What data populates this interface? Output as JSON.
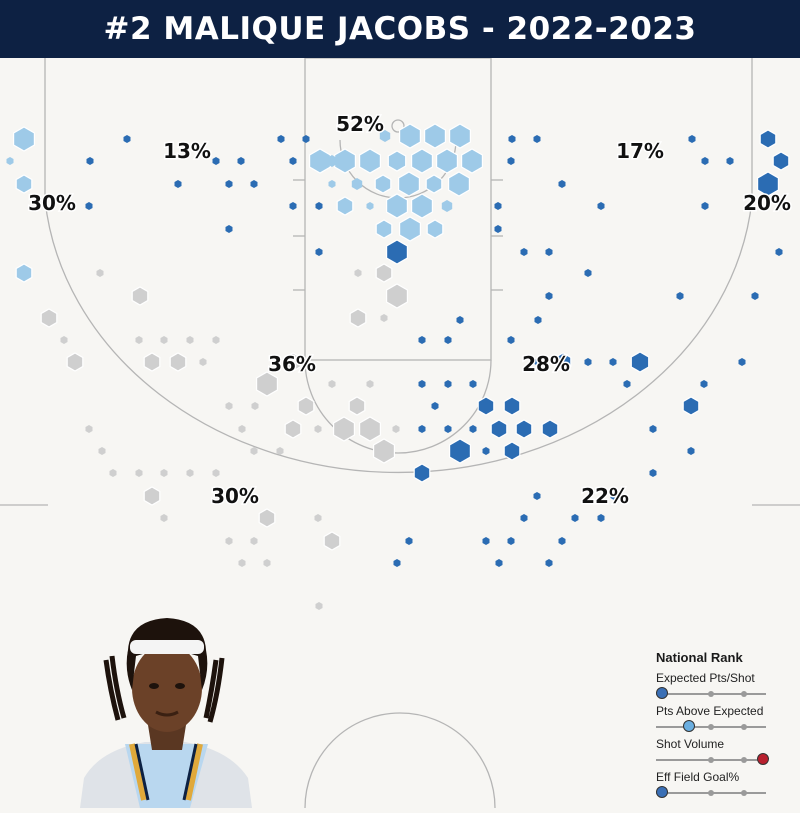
{
  "header": {
    "title": "#2 MALIQUE JACOBS - 2022-2023"
  },
  "colors": {
    "header_bg": "#0d2143",
    "light_blue": "#9ecae8",
    "dark_blue": "#2b6cb3",
    "gray": "#cfcfcf",
    "low_rank": "#3a6fb5",
    "mid_rank": "#6aaee0",
    "high_rank": "#b8202e"
  },
  "legend": {
    "title": "National Rank",
    "metrics": [
      {
        "label": "Expected Pts/Shot",
        "rank": 0.05,
        "color": "#3a6fb5"
      },
      {
        "label": "Pts Above Expected",
        "rank": 0.3,
        "color": "#6aaee0"
      },
      {
        "label": "Shot Volume",
        "rank": 0.97,
        "color": "#b8202e"
      },
      {
        "label": "Eff Field Goal%",
        "rank": 0.05,
        "color": "#3a6fb5"
      }
    ]
  },
  "player_image": {
    "icon": "player-headshot",
    "description_visible": ""
  },
  "chart_data": {
    "type": "scatter",
    "title": "#2 MALIQUE JACOBS - 2022-2023",
    "zones": [
      {
        "label": "52%"
      },
      {
        "label": "13%"
      },
      {
        "label": "17%"
      },
      {
        "label": "30%"
      },
      {
        "label": "20%"
      },
      {
        "label": "36%"
      },
      {
        "label": "28%"
      },
      {
        "label": "30%"
      },
      {
        "label": "22%"
      }
    ]
  }
}
